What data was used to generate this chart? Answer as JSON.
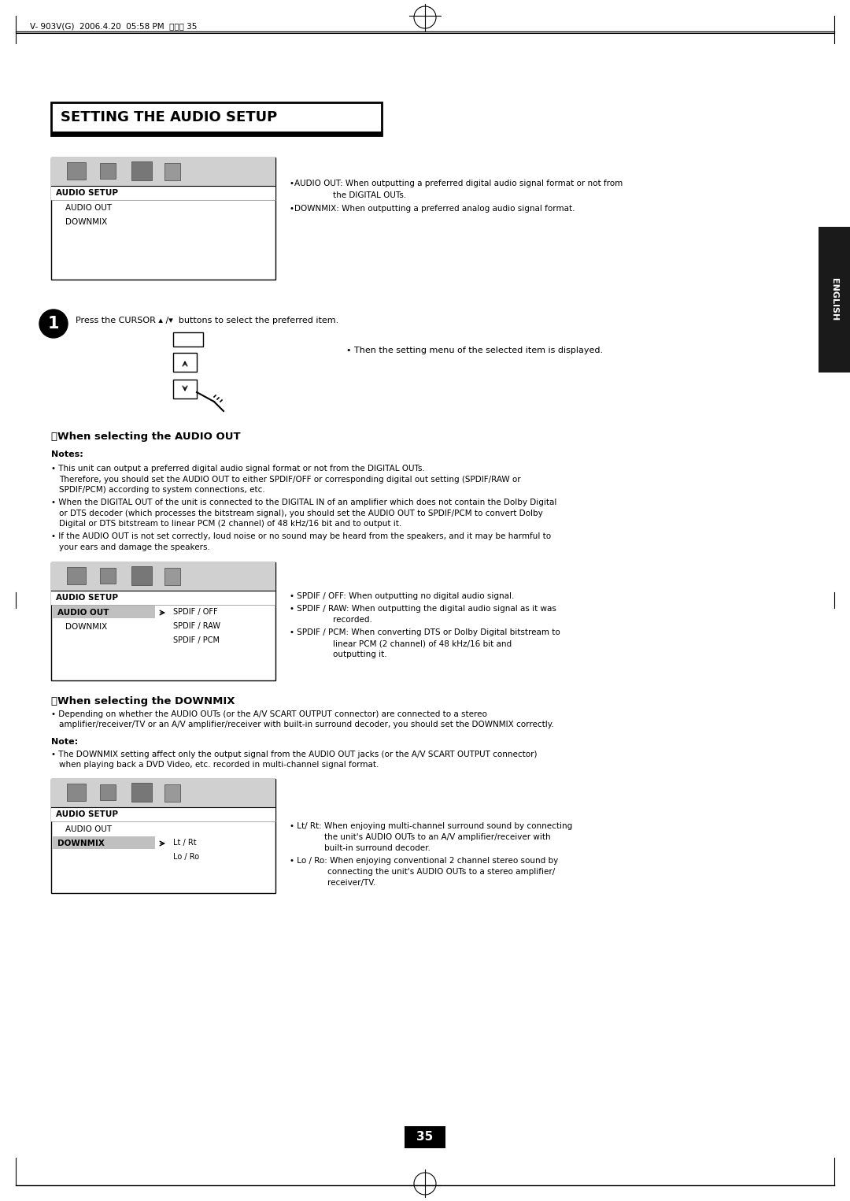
{
  "page_header": "V- 903V(G)  2006.4.20  05:58 PM  페이지 35",
  "title": "SETTING THE AUDIO SETUP",
  "english_tab": "ENGLISH",
  "menu_label": "AUDIO SETUP",
  "menu_items": [
    "AUDIO OUT",
    "DOWNMIX"
  ],
  "section1_title": "樹When selecting the AUDIO OUT",
  "notes_label": "Notes:",
  "menu2_label": "AUDIO SETUP",
  "menu2_selected": "AUDIO OUT",
  "menu2_item2": "DOWNMIX",
  "menu2_options": [
    "SPDIF / OFF",
    "SPDIF / RAW",
    "SPDIF / PCM"
  ],
  "section2_title": "樹When selecting the DOWNMIX",
  "note_label": "Note:",
  "menu3_label": "AUDIO SETUP",
  "menu3_item1": "AUDIO OUT",
  "menu3_selected": "DOWNMIX",
  "menu3_options": [
    "Lt / Rt",
    "Lo / Ro"
  ],
  "page_number": "35",
  "bg_color": "#ffffff",
  "menu_header_bg": "#d0d0d0",
  "selected_bg": "#c0c0c0",
  "english_bg": "#1a1a1a",
  "english_fg": "#ffffff"
}
